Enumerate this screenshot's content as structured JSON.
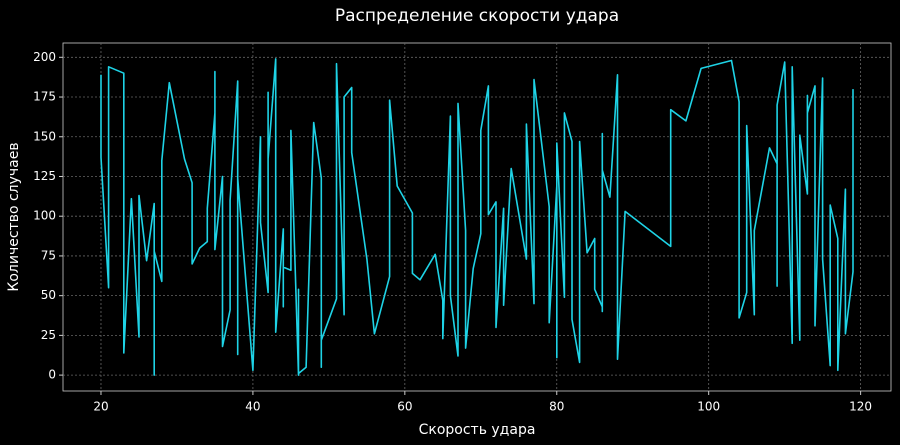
{
  "chart_data": {
    "type": "line",
    "title": "Распределение скорости удара",
    "x_label": "Скорость удара",
    "y_label": "Количество случаев",
    "color": "#1ed3e6",
    "grid": true,
    "xlim": [
      15,
      124
    ],
    "ylim": [
      -10,
      209
    ],
    "xticks": [
      20,
      40,
      60,
      80,
      100,
      120
    ],
    "yticks": [
      0,
      25,
      50,
      75,
      100,
      125,
      150,
      175,
      200
    ],
    "x": [
      20,
      20,
      21,
      21,
      23,
      23,
      24,
      25,
      25,
      26,
      27,
      27,
      27,
      28,
      28,
      29,
      31,
      32,
      32,
      33,
      34,
      34,
      35,
      35,
      35,
      36,
      36,
      37,
      37,
      38,
      38,
      38,
      40,
      41,
      41,
      42,
      42,
      42,
      43,
      43,
      44,
      44,
      44,
      45,
      45,
      46,
      46,
      46,
      47,
      48,
      49,
      49,
      49,
      51,
      51,
      52,
      52,
      53,
      53,
      55,
      56,
      58,
      58,
      59,
      61,
      61,
      62,
      64,
      65,
      65,
      66,
      66,
      67,
      67,
      68,
      68,
      69,
      70,
      70,
      71,
      71,
      72,
      72,
      73,
      73,
      74,
      76,
      76,
      77,
      77,
      79,
      79,
      80,
      80,
      80,
      81,
      81,
      82,
      82,
      83,
      83,
      84,
      85,
      85,
      86,
      86,
      86,
      86,
      87,
      88,
      88,
      89,
      95,
      95,
      97,
      99,
      103,
      104,
      104,
      105,
      105,
      106,
      106,
      108,
      109,
      109,
      109,
      110,
      111,
      111,
      112,
      112,
      113,
      113,
      113,
      114,
      114,
      115,
      115,
      116,
      116,
      117,
      117,
      118,
      118,
      119,
      119
    ],
    "values": [
      189,
      137,
      55,
      194,
      190,
      14,
      111,
      24,
      113,
      72,
      108,
      0,
      78,
      59,
      135,
      184,
      136,
      121,
      70,
      80,
      84,
      105,
      165,
      191,
      79,
      125,
      18,
      41,
      110,
      185,
      13,
      124,
      3,
      150,
      96,
      52,
      178,
      136,
      199,
      27,
      92,
      43,
      68,
      66,
      154,
      0,
      54,
      1,
      5,
      159,
      124,
      5,
      22,
      48,
      196,
      38,
      175,
      181,
      140,
      73,
      26,
      62,
      173,
      119,
      102,
      64,
      60,
      76,
      47,
      23,
      163,
      50,
      12,
      171,
      91,
      17,
      67,
      89,
      154,
      182,
      101,
      109,
      30,
      105,
      44,
      130,
      73,
      158,
      45,
      186,
      106,
      33,
      119,
      11,
      146,
      49,
      165,
      147,
      35,
      8,
      147,
      77,
      86,
      54,
      43,
      152,
      40,
      129,
      112,
      189,
      10,
      103,
      81,
      167,
      160,
      193,
      198,
      172,
      36,
      52,
      157,
      38,
      91,
      143,
      133,
      56,
      170,
      197,
      20,
      194,
      22,
      151,
      114,
      176,
      165,
      182,
      31,
      187,
      73,
      6,
      107,
      86,
      3,
      117,
      26,
      65,
      180
    ]
  }
}
